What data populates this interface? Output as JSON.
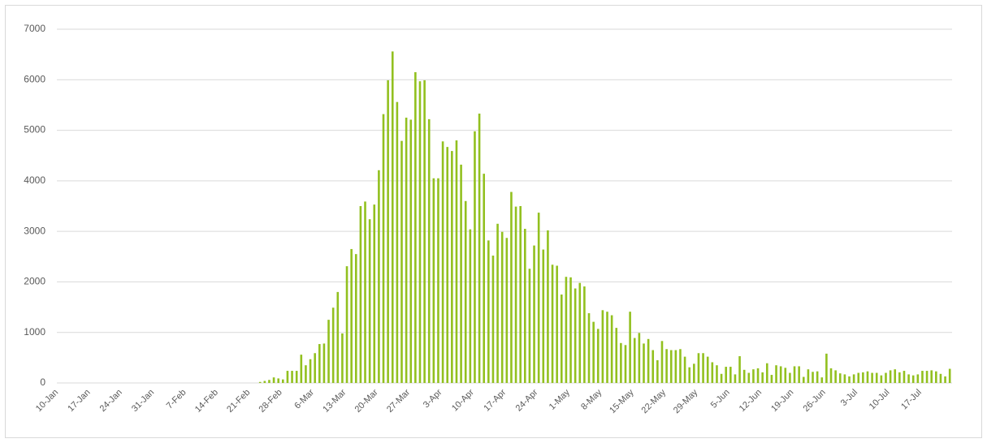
{
  "chart_data": {
    "type": "bar",
    "color": "#92c01f",
    "grid": true,
    "ylim": [
      0,
      7000
    ],
    "yticks": [
      0,
      1000,
      2000,
      3000,
      4000,
      5000,
      6000,
      7000
    ],
    "categories": [
      "10-Jan",
      null,
      null,
      null,
      null,
      null,
      null,
      "17-Jan",
      null,
      null,
      null,
      null,
      null,
      null,
      "24-Jan",
      null,
      null,
      null,
      null,
      null,
      null,
      "31-Jan",
      null,
      null,
      null,
      null,
      null,
      null,
      "7-Feb",
      null,
      null,
      null,
      null,
      null,
      null,
      "14-Feb",
      null,
      null,
      null,
      null,
      null,
      null,
      "21-Feb",
      null,
      null,
      null,
      null,
      null,
      null,
      "28-Feb",
      null,
      null,
      null,
      null,
      null,
      null,
      "6-Mar",
      null,
      null,
      null,
      null,
      null,
      null,
      "13-Mar",
      null,
      null,
      null,
      null,
      null,
      null,
      "20-Mar",
      null,
      null,
      null,
      null,
      null,
      null,
      "27-Mar",
      null,
      null,
      null,
      null,
      null,
      null,
      "3-Apr",
      null,
      null,
      null,
      null,
      null,
      null,
      "10-Apr",
      null,
      null,
      null,
      null,
      null,
      null,
      "17-Apr",
      null,
      null,
      null,
      null,
      null,
      null,
      "24-Apr",
      null,
      null,
      null,
      null,
      null,
      null,
      "1-May",
      null,
      null,
      null,
      null,
      null,
      null,
      "8-May",
      null,
      null,
      null,
      null,
      null,
      null,
      "15-May",
      null,
      null,
      null,
      null,
      null,
      null,
      "22-May",
      null,
      null,
      null,
      null,
      null,
      null,
      "29-May",
      null,
      null,
      null,
      null,
      null,
      null,
      "5-Jun",
      null,
      null,
      null,
      null,
      null,
      null,
      "12-Jun",
      null,
      null,
      null,
      null,
      null,
      null,
      "19-Jun",
      null,
      null,
      null,
      null,
      null,
      null,
      "26-Jun",
      null,
      null,
      null,
      null,
      null,
      null,
      "3-Jul",
      null,
      null,
      null,
      null,
      null,
      null,
      "10-Jul",
      null,
      null,
      null,
      null,
      null,
      null,
      "17-Jul",
      null,
      null,
      null,
      null,
      null,
      null
    ],
    "values": [
      0,
      0,
      0,
      0,
      0,
      0,
      0,
      0,
      0,
      0,
      0,
      0,
      0,
      0,
      0,
      0,
      0,
      0,
      0,
      0,
      0,
      0,
      0,
      0,
      0,
      0,
      0,
      0,
      0,
      0,
      0,
      0,
      0,
      0,
      0,
      0,
      0,
      0,
      0,
      0,
      0,
      0,
      0,
      0,
      20,
      40,
      60,
      110,
      90,
      70,
      240,
      240,
      240,
      560,
      350,
      470,
      590,
      770,
      780,
      1250,
      1490,
      1800,
      980,
      2310,
      2650,
      2550,
      3500,
      3590,
      3240,
      3530,
      4210,
      5320,
      5990,
      6560,
      5560,
      4790,
      5250,
      5210,
      6150,
      5970,
      5990,
      5220,
      4050,
      4050,
      4780,
      4670,
      4590,
      4800,
      4320,
      3600,
      3040,
      4980,
      5330,
      4140,
      2820,
      2520,
      3150,
      2990,
      2870,
      3780,
      3490,
      3500,
      3050,
      2260,
      2720,
      3370,
      2640,
      3020,
      2340,
      2320,
      1750,
      2100,
      2090,
      1870,
      1980,
      1910,
      1380,
      1210,
      1070,
      1440,
      1410,
      1340,
      1090,
      790,
      750,
      1410,
      890,
      990,
      780,
      870,
      650,
      450,
      830,
      670,
      650,
      650,
      670,
      520,
      310,
      380,
      590,
      590,
      520,
      410,
      350,
      180,
      320,
      320,
      170,
      530,
      260,
      200,
      270,
      290,
      210,
      390,
      160,
      350,
      330,
      300,
      200,
      330,
      330,
      120,
      270,
      220,
      230,
      110,
      580,
      290,
      250,
      190,
      170,
      130,
      170,
      200,
      210,
      230,
      200,
      200,
      150,
      200,
      250,
      270,
      210,
      240,
      170,
      150,
      170,
      240,
      240,
      250,
      230,
      180,
      130,
      280
    ]
  }
}
